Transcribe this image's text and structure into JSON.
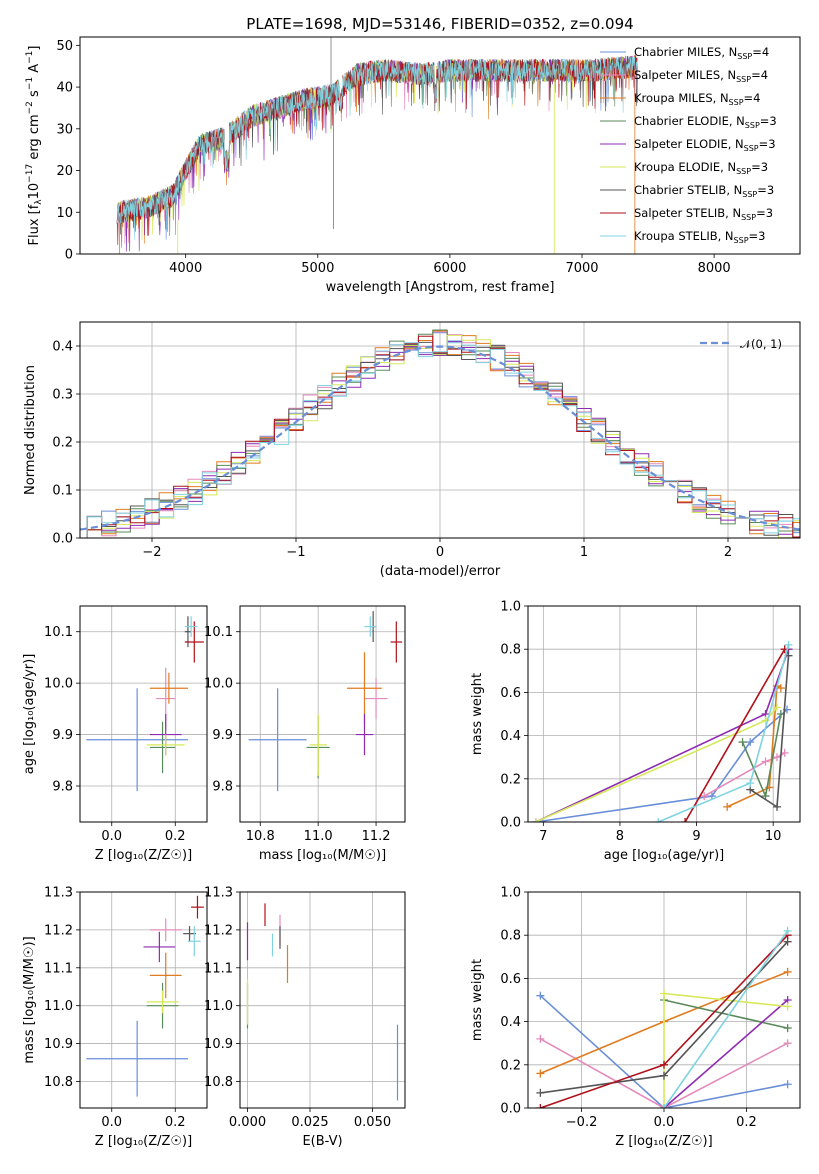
{
  "figure_title": "PLATE=1698, MJD=53146, FIBERID=0352, z=0.094",
  "colors": {
    "blue": "#6a8fd8",
    "pink": "#e48bbc",
    "orange": "#e07b1f",
    "green": "#5a8a5a",
    "purple": "#8e2bb0",
    "yellow": "#d6e85a",
    "gray": "#555555",
    "red": "#b0101a",
    "cyan": "#7fd3e0"
  },
  "chart_data": [
    {
      "id": "spectrum",
      "type": "line",
      "xlabel": "wavelength [Angstrom, rest frame]",
      "ylabel_html": "Flux [f<tspan dy='3' font-size='9'>λ</tspan><tspan dy='-3'>10</tspan><tspan dy='-6' font-size='9'>−17</tspan><tspan dy='6'> erg cm</tspan><tspan dy='-6' font-size='9'>−2</tspan><tspan dy='6'> s</tspan><tspan dy='-6' font-size='9'>−1</tspan><tspan dy='6'> A</tspan><tspan dy='-6' font-size='9'>−1</tspan><tspan dy='6'>]</tspan>",
      "xlim": [
        3200,
        8650
      ],
      "ylim": [
        0,
        52
      ],
      "xticks": [
        4000,
        5000,
        6000,
        7000,
        8000
      ],
      "yticks": [
        0,
        10,
        20,
        30,
        40,
        50
      ],
      "grid": false,
      "legend": [
        {
          "label": "Chabrier MILES, N",
          "sub": "SSP",
          "suffix": "=4",
          "color": "blue"
        },
        {
          "label": "Salpeter MILES, N",
          "sub": "SSP",
          "suffix": "=4",
          "color": "pink"
        },
        {
          "label": "Kroupa MILES, N",
          "sub": "SSP",
          "suffix": "=4",
          "color": "orange"
        },
        {
          "label": "Chabrier ELODIE, N",
          "sub": "SSP",
          "suffix": "=3",
          "color": "green"
        },
        {
          "label": "Salpeter ELODIE, N",
          "sub": "SSP",
          "suffix": "=3",
          "color": "purple"
        },
        {
          "label": "Kroupa ELODIE, N",
          "sub": "SSP",
          "suffix": "=3",
          "color": "yellow"
        },
        {
          "label": "Chabrier STELIB, N",
          "sub": "SSP",
          "suffix": "=3",
          "color": "gray"
        },
        {
          "label": "Salpeter STELIB, N",
          "sub": "SSP",
          "suffix": "=3",
          "color": "red"
        },
        {
          "label": "Kroupa STELIB, N",
          "sub": "SSP",
          "suffix": "=3",
          "color": "cyan"
        }
      ],
      "continuum": [
        [
          3480,
          10
        ],
        [
          3700,
          11
        ],
        [
          3900,
          14
        ],
        [
          4000,
          20
        ],
        [
          4100,
          26
        ],
        [
          4300,
          28
        ],
        [
          4500,
          33
        ],
        [
          4700,
          35
        ],
        [
          4900,
          37
        ],
        [
          5100,
          38
        ],
        [
          5300,
          43
        ],
        [
          5500,
          44
        ],
        [
          5800,
          43
        ],
        [
          6000,
          44
        ],
        [
          6200,
          44
        ],
        [
          6500,
          44
        ],
        [
          6800,
          44
        ],
        [
          7100,
          44
        ],
        [
          7400,
          45
        ]
      ]
    },
    {
      "id": "residuals",
      "type": "step",
      "xlabel": "(data-model)/error",
      "ylabel": "Normed distribution",
      "xlim": [
        -2.5,
        2.5
      ],
      "ylim": [
        0,
        0.45
      ],
      "xticks": [
        -2,
        -1,
        0,
        1,
        2
      ],
      "yticks": [
        0.0,
        0.1,
        0.2,
        0.3,
        0.4
      ],
      "grid": true,
      "legend": [
        {
          "label": "𝒩(0, 1)",
          "color": "blue",
          "dashed": true
        }
      ]
    },
    {
      "id": "z_age",
      "type": "scatter-errorbar",
      "xlabel": "Z [log₁₀(Z/Z☉)]",
      "ylabel": "age  [log₁₀(age/yr)]",
      "xlim": [
        -0.1,
        0.3
      ],
      "ylim": [
        9.73,
        10.15
      ],
      "xticks": [
        0.0,
        0.2
      ],
      "yticks": [
        9.8,
        9.9,
        10.0,
        10.1
      ],
      "grid": true,
      "points": [
        {
          "x": 0.08,
          "y": 9.89,
          "xerr": 0.16,
          "yerr": 0.1,
          "color": "blue"
        },
        {
          "x": 0.17,
          "y": 9.97,
          "xerr": 0.03,
          "yerr": 0.06,
          "color": "pink"
        },
        {
          "x": 0.18,
          "y": 9.99,
          "xerr": 0.06,
          "yerr": 0.03,
          "color": "orange"
        },
        {
          "x": 0.16,
          "y": 9.875,
          "xerr": 0.04,
          "yerr": 0.05,
          "color": "green"
        },
        {
          "x": 0.17,
          "y": 9.9,
          "xerr": 0.05,
          "yerr": 0.04,
          "color": "purple"
        },
        {
          "x": 0.17,
          "y": 9.88,
          "xerr": 0.06,
          "yerr": 0.02,
          "color": "yellow"
        },
        {
          "x": 0.24,
          "y": 10.1,
          "xerr": 0.01,
          "yerr": 0.03,
          "color": "gray"
        },
        {
          "x": 0.26,
          "y": 10.08,
          "xerr": 0.03,
          "yerr": 0.04,
          "color": "red"
        },
        {
          "x": 0.25,
          "y": 10.11,
          "xerr": 0.02,
          "yerr": 0.02,
          "color": "cyan"
        }
      ]
    },
    {
      "id": "mass_age",
      "type": "scatter-errorbar",
      "xlabel": "mass [log₁₀(M/M☉)]",
      "ylabel": "",
      "xlim": [
        10.73,
        11.3
      ],
      "ylim": [
        9.73,
        10.15
      ],
      "xticks": [
        10.8,
        11.0,
        11.2
      ],
      "yticks": [
        9.8,
        9.9,
        10.0,
        10.1
      ],
      "grid": true,
      "points": [
        {
          "x": 10.86,
          "y": 9.89,
          "xerr": 0.1,
          "yerr": 0.1,
          "color": "blue"
        },
        {
          "x": 11.2,
          "y": 9.97,
          "xerr": 0.04,
          "yerr": 0.04,
          "color": "pink"
        },
        {
          "x": 11.16,
          "y": 9.99,
          "xerr": 0.06,
          "yerr": 0.07,
          "color": "orange"
        },
        {
          "x": 11.0,
          "y": 9.875,
          "xerr": 0.04,
          "yerr": 0.06,
          "color": "green"
        },
        {
          "x": 11.16,
          "y": 9.9,
          "xerr": 0.03,
          "yerr": 0.04,
          "color": "purple"
        },
        {
          "x": 11.0,
          "y": 9.88,
          "xerr": 0.03,
          "yerr": 0.06,
          "color": "yellow"
        },
        {
          "x": 11.19,
          "y": 10.11,
          "xerr": 0.01,
          "yerr": 0.03,
          "color": "gray"
        },
        {
          "x": 11.27,
          "y": 10.08,
          "xerr": 0.02,
          "yerr": 0.04,
          "color": "red"
        },
        {
          "x": 11.18,
          "y": 10.11,
          "xerr": 0.02,
          "yerr": 0.02,
          "color": "cyan"
        }
      ]
    },
    {
      "id": "age_weight",
      "type": "line",
      "xlabel": "age  [log₁₀(age/yr)]",
      "ylabel": "mass weight",
      "xlim": [
        6.8,
        10.35
      ],
      "ylim": [
        0,
        1.0
      ],
      "xticks": [
        7,
        8,
        9,
        10
      ],
      "yticks": [
        0.0,
        0.2,
        0.4,
        0.6,
        0.8,
        1.0
      ],
      "grid": true,
      "series": [
        {
          "name": "Chabrier MILES",
          "color": "blue",
          "x": [
            6.9,
            9.2,
            9.7,
            10.18
          ],
          "y": [
            0.0,
            0.12,
            0.37,
            0.52
          ]
        },
        {
          "name": "Salpeter MILES",
          "color": "pink",
          "x": [
            9.1,
            9.9,
            10.05,
            10.15
          ],
          "y": [
            0.12,
            0.28,
            0.3,
            0.32
          ]
        },
        {
          "name": "Kroupa MILES",
          "color": "orange",
          "x": [
            9.4,
            9.95,
            10.05,
            10.1
          ],
          "y": [
            0.07,
            0.16,
            0.63,
            0.62
          ]
        },
        {
          "name": "Chabrier ELODIE",
          "color": "green",
          "x": [
            9.6,
            9.9,
            10.1
          ],
          "y": [
            0.37,
            0.12,
            0.5
          ]
        },
        {
          "name": "Salpeter ELODIE",
          "color": "purple",
          "x": [
            6.9,
            9.9,
            10.2
          ],
          "y": [
            0.0,
            0.5,
            0.8
          ]
        },
        {
          "name": "Kroupa ELODIE",
          "color": "yellow",
          "x": [
            6.9,
            9.9,
            10.05
          ],
          "y": [
            0.0,
            0.47,
            0.53
          ]
        },
        {
          "name": "Chabrier STELIB",
          "color": "gray",
          "x": [
            9.7,
            10.05,
            10.2
          ],
          "y": [
            0.15,
            0.07,
            0.77
          ]
        },
        {
          "name": "Salpeter STELIB",
          "color": "red",
          "x": [
            8.85,
            10.15
          ],
          "y": [
            0.0,
            0.8
          ]
        },
        {
          "name": "Kroupa STELIB",
          "color": "cyan",
          "x": [
            8.5,
            9.7,
            10.2
          ],
          "y": [
            0.0,
            0.18,
            0.82
          ]
        }
      ]
    },
    {
      "id": "z_mass",
      "type": "scatter-errorbar",
      "xlabel": "Z [log₁₀(Z/Z☉)]",
      "ylabel": "mass [log₁₀(M/M☉)]",
      "xlim": [
        -0.1,
        0.3
      ],
      "ylim": [
        10.73,
        11.3
      ],
      "xticks": [
        0.0,
        0.2
      ],
      "yticks": [
        10.8,
        10.9,
        11.0,
        11.1,
        11.2,
        11.3
      ],
      "grid": true,
      "points": [
        {
          "x": 0.08,
          "y": 10.86,
          "xerr": 0.16,
          "yerr": 0.1,
          "color": "blue"
        },
        {
          "x": 0.17,
          "y": 11.2,
          "xerr": 0.05,
          "yerr": 0.03,
          "color": "pink"
        },
        {
          "x": 0.17,
          "y": 11.08,
          "xerr": 0.05,
          "yerr": 0.06,
          "color": "orange"
        },
        {
          "x": 0.16,
          "y": 11.0,
          "xerr": 0.05,
          "yerr": 0.06,
          "color": "green"
        },
        {
          "x": 0.15,
          "y": 11.155,
          "xerr": 0.05,
          "yerr": 0.04,
          "color": "purple"
        },
        {
          "x": 0.16,
          "y": 11.01,
          "xerr": 0.05,
          "yerr": 0.03,
          "color": "yellow"
        },
        {
          "x": 0.245,
          "y": 11.19,
          "xerr": 0.02,
          "yerr": 0.02,
          "color": "gray"
        },
        {
          "x": 0.27,
          "y": 11.26,
          "xerr": 0.02,
          "yerr": 0.03,
          "color": "red"
        },
        {
          "x": 0.26,
          "y": 11.17,
          "xerr": 0.02,
          "yerr": 0.04,
          "color": "cyan"
        }
      ]
    },
    {
      "id": "ebv_mass",
      "type": "scatter-errorbar",
      "xlabel": "E(B-V)",
      "ylabel": "",
      "xlim": [
        -0.003,
        0.063
      ],
      "ylim": [
        10.73,
        11.3
      ],
      "xticks": [
        0.0,
        0.025,
        0.05
      ],
      "yticks": [
        10.8,
        10.9,
        11.0,
        11.1,
        11.2,
        11.3
      ],
      "grid": true,
      "points": [
        {
          "x": 0.06,
          "y": 10.85,
          "xerr": 0.0002,
          "yerr": 0.1,
          "color": "blue"
        },
        {
          "x": 0.013,
          "y": 11.2,
          "xerr": 0.0002,
          "yerr": 0.04,
          "color": "pink"
        },
        {
          "x": 0.016,
          "y": 11.11,
          "xerr": 0.0002,
          "yerr": 0.05,
          "color": "orange"
        },
        {
          "x": 0.0,
          "y": 11.0,
          "xerr": 0.0002,
          "yerr": 0.06,
          "color": "green"
        },
        {
          "x": 0.0,
          "y": 11.17,
          "xerr": 0.0002,
          "yerr": 0.05,
          "color": "purple"
        },
        {
          "x": 0.0,
          "y": 11.01,
          "xerr": 0.0002,
          "yerr": 0.06,
          "color": "yellow"
        },
        {
          "x": 0.013,
          "y": 11.18,
          "xerr": 0.0002,
          "yerr": 0.03,
          "color": "gray"
        },
        {
          "x": 0.007,
          "y": 11.24,
          "xerr": 0.0002,
          "yerr": 0.03,
          "color": "red"
        },
        {
          "x": 0.01,
          "y": 11.16,
          "xerr": 0.0002,
          "yerr": 0.03,
          "color": "cyan"
        }
      ]
    },
    {
      "id": "z_weight",
      "type": "line",
      "xlabel": "Z [log₁₀(Z/Z☉)]",
      "ylabel": "mass weight",
      "xlim": [
        -0.33,
        0.33
      ],
      "ylim": [
        0,
        1.0
      ],
      "xticks": [
        -0.2,
        0.0,
        0.2
      ],
      "yticks": [
        0.0,
        0.2,
        0.4,
        0.6,
        0.8,
        1.0
      ],
      "grid": true,
      "series": [
        {
          "name": "Chabrier MILES",
          "color": "blue",
          "x": [
            -0.3,
            0.0,
            0.3
          ],
          "y": [
            0.52,
            0.0,
            0.11
          ]
        },
        {
          "name": "Salpeter MILES",
          "color": "pink",
          "x": [
            -0.3,
            0.0,
            0.3
          ],
          "y": [
            0.32,
            0.0,
            0.3
          ]
        },
        {
          "name": "Kroupa MILES",
          "color": "orange",
          "x": [
            -0.3,
            0.0,
            0.3
          ],
          "y": [
            0.16,
            0.4,
            0.63
          ]
        },
        {
          "name": "Chabrier ELODIE",
          "color": "green",
          "x": [
            0.0,
            0.3
          ],
          "y": [
            0.5,
            0.37
          ]
        },
        {
          "name": "Salpeter ELODIE",
          "color": "purple",
          "x": [
            0.0,
            0.3
          ],
          "y": [
            0.0,
            0.5
          ]
        },
        {
          "name": "Kroupa ELODIE",
          "color": "yellow",
          "x": [
            0.0,
            0.0,
            0.3
          ],
          "y": [
            0.0,
            0.53,
            0.47
          ]
        },
        {
          "name": "Chabrier STELIB",
          "color": "gray",
          "x": [
            -0.3,
            0.0,
            0.3
          ],
          "y": [
            0.07,
            0.15,
            0.77
          ]
        },
        {
          "name": "Salpeter STELIB",
          "color": "red",
          "x": [
            -0.3,
            0.0,
            0.3
          ],
          "y": [
            0.0,
            0.2,
            0.8
          ]
        },
        {
          "name": "Kroupa STELIB",
          "color": "cyan",
          "x": [
            0.0,
            0.3
          ],
          "y": [
            0.0,
            0.82
          ]
        }
      ]
    }
  ]
}
